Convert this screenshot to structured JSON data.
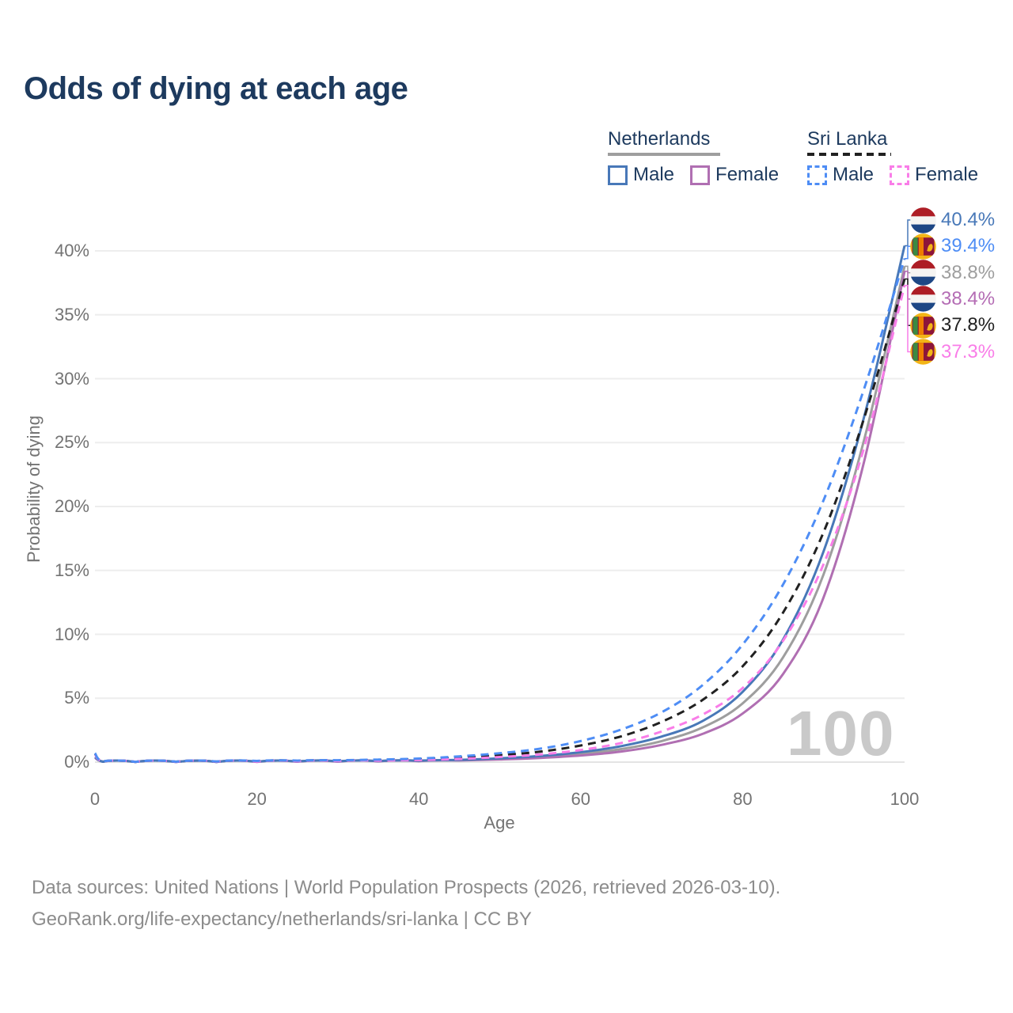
{
  "title": "Odds of dying at each age",
  "legend": {
    "groups": [
      {
        "label": "Netherlands",
        "line_style": "solid",
        "underline_color": "#9e9e9e",
        "underline_width": 142,
        "items": [
          {
            "label": "Male",
            "color": "#4878b8",
            "dashed": false
          },
          {
            "label": "Female",
            "color": "#b06fb2",
            "dashed": false
          }
        ]
      },
      {
        "label": "Sri Lanka",
        "line_style": "dashed",
        "underline_color": "#212121",
        "underline_width": 106,
        "items": [
          {
            "label": "Male",
            "color": "#4e8df5",
            "dashed": true
          },
          {
            "label": "Female",
            "color": "#f97de8",
            "dashed": true
          }
        ]
      }
    ]
  },
  "axes": {
    "y": {
      "title": "Probability of dying",
      "ticks": [
        "0%",
        "5%",
        "10%",
        "15%",
        "20%",
        "25%",
        "30%",
        "35%",
        "40%"
      ],
      "tick_values": [
        0,
        5,
        10,
        15,
        20,
        25,
        30,
        35,
        40
      ]
    },
    "x": {
      "title": "Age",
      "ticks": [
        "0",
        "20",
        "40",
        "60",
        "80",
        "100"
      ],
      "tick_values": [
        0,
        20,
        40,
        60,
        80,
        100
      ]
    }
  },
  "watermark": "100",
  "end_labels": [
    {
      "value": "40.4%",
      "flag": "netherlands",
      "series": "nl_male",
      "color": "#4878b8"
    },
    {
      "value": "39.4%",
      "flag": "sri-lanka",
      "series": "lk_male",
      "color": "#4e8df5"
    },
    {
      "value": "38.8%",
      "flag": "netherlands",
      "series": "nl_both",
      "color": "#9e9e9e"
    },
    {
      "value": "38.4%",
      "flag": "netherlands",
      "series": "nl_female",
      "color": "#b46cb4"
    },
    {
      "value": "37.8%",
      "flag": "sri-lanka",
      "series": "lk_both",
      "color": "#212121"
    },
    {
      "value": "37.3%",
      "flag": "sri-lanka",
      "series": "lk_female",
      "color": "#f97de8"
    }
  ],
  "footer": {
    "line1": "Data sources: United Nations | World Population Prospects (2026, retrieved 2026-03-10).",
    "line2": "GeoRank.org/life-expectancy/netherlands/sri-lanka | CC BY"
  },
  "chart_data": {
    "type": "line",
    "title": "Odds of dying at each age",
    "xlabel": "Age",
    "ylabel": "Probability of dying",
    "xlim": [
      0,
      100
    ],
    "ylim": [
      0,
      40
    ],
    "grid": "horizontal",
    "legend_position": "top-right",
    "x": [
      0,
      1,
      5,
      10,
      15,
      20,
      25,
      30,
      35,
      40,
      45,
      50,
      55,
      60,
      65,
      70,
      75,
      80,
      85,
      90,
      95,
      100
    ],
    "unit": "percent",
    "series": [
      {
        "name": "Netherlands combined",
        "key": "nl_both",
        "color": "#9e9e9e",
        "dashed": false,
        "values": [
          0.38,
          0.03,
          0.01,
          0.01,
          0.02,
          0.03,
          0.04,
          0.05,
          0.07,
          0.1,
          0.15,
          0.25,
          0.4,
          0.64,
          1.02,
          1.65,
          2.7,
          4.6,
          8.2,
          14.7,
          25.2,
          38.8
        ]
      },
      {
        "name": "Netherlands Female",
        "key": "nl_female",
        "color": "#b06fb2",
        "dashed": false,
        "values": [
          0.35,
          0.03,
          0.01,
          0.01,
          0.02,
          0.02,
          0.03,
          0.04,
          0.06,
          0.08,
          0.13,
          0.21,
          0.33,
          0.52,
          0.83,
          1.35,
          2.2,
          3.8,
          6.9,
          12.9,
          23.5,
          38.4
        ]
      },
      {
        "name": "Netherlands Male",
        "key": "nl_male",
        "color": "#4878b8",
        "dashed": false,
        "values": [
          0.4,
          0.03,
          0.01,
          0.01,
          0.02,
          0.04,
          0.05,
          0.06,
          0.08,
          0.11,
          0.18,
          0.3,
          0.48,
          0.78,
          1.25,
          2.0,
          3.2,
          5.5,
          9.6,
          16.5,
          27.0,
          40.4
        ]
      },
      {
        "name": "Sri Lanka combined",
        "key": "lk_both",
        "color": "#212121",
        "dashed": true,
        "values": [
          0.65,
          0.06,
          0.02,
          0.03,
          0.04,
          0.07,
          0.09,
          0.12,
          0.16,
          0.22,
          0.35,
          0.55,
          0.82,
          1.3,
          2.02,
          3.15,
          4.85,
          7.5,
          11.7,
          18.0,
          26.9,
          37.8
        ]
      },
      {
        "name": "Sri Lanka Female",
        "key": "lk_female",
        "color": "#f97de8",
        "dashed": true,
        "values": [
          0.6,
          0.05,
          0.02,
          0.02,
          0.03,
          0.04,
          0.06,
          0.08,
          0.11,
          0.16,
          0.25,
          0.4,
          0.6,
          0.95,
          1.5,
          2.4,
          3.7,
          5.8,
          9.5,
          15.5,
          24.6,
          37.3
        ]
      },
      {
        "name": "Sri Lanka Male",
        "key": "lk_male",
        "color": "#4e8df5",
        "dashed": true,
        "values": [
          0.7,
          0.06,
          0.02,
          0.03,
          0.05,
          0.09,
          0.12,
          0.15,
          0.2,
          0.28,
          0.45,
          0.7,
          1.05,
          1.65,
          2.55,
          3.9,
          6.0,
          9.2,
          13.9,
          20.5,
          29.2,
          39.4
        ]
      }
    ]
  }
}
